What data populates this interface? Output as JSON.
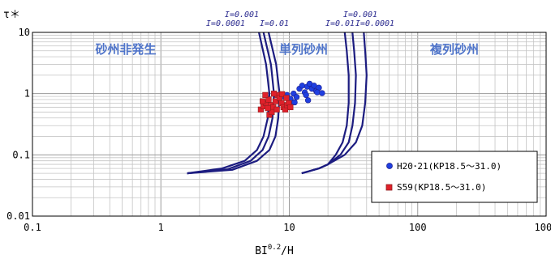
{
  "chart_data": {
    "type": "scatter",
    "xscale": "log",
    "yscale": "log",
    "xlim": [
      0.1,
      1000
    ],
    "ylim": [
      0.01,
      10
    ],
    "xticks": [
      "0.1",
      "1",
      "10",
      "100",
      "1000"
    ],
    "yticks": [
      "0.01",
      "0.1",
      "1",
      "10"
    ],
    "ylabel": "τ＊",
    "xlabel_base": "BI",
    "xlabel_exp": "0.2",
    "xlabel_tail": "/H",
    "grid": true,
    "regions": [
      "砂州非発生",
      "単列砂州",
      "複列砂州"
    ],
    "curve_labels_left": [
      "I=0.001",
      "I=0.0001",
      "I=0.01"
    ],
    "curve_labels_right": [
      "I=0.001",
      "I=0.01",
      "I=0.0001"
    ],
    "curve_color": "#1c1c80",
    "boundary_curves": [
      {
        "group": "left",
        "points": [
          [
            1.6,
            0.05
          ],
          [
            3.0,
            0.06
          ],
          [
            4.5,
            0.08
          ],
          [
            5.6,
            0.12
          ],
          [
            6.3,
            0.2
          ],
          [
            6.8,
            0.4
          ],
          [
            7.0,
            1.0
          ],
          [
            6.6,
            3.0
          ],
          [
            5.8,
            10
          ]
        ]
      },
      {
        "group": "left",
        "points": [
          [
            1.6,
            0.05
          ],
          [
            3.3,
            0.058
          ],
          [
            5.0,
            0.08
          ],
          [
            6.2,
            0.12
          ],
          [
            6.9,
            0.2
          ],
          [
            7.4,
            0.4
          ],
          [
            7.6,
            1.0
          ],
          [
            7.2,
            3.0
          ],
          [
            6.3,
            10
          ]
        ]
      },
      {
        "group": "left",
        "points": [
          [
            1.6,
            0.05
          ],
          [
            3.6,
            0.057
          ],
          [
            5.6,
            0.08
          ],
          [
            7.0,
            0.12
          ],
          [
            7.8,
            0.2
          ],
          [
            8.2,
            0.4
          ],
          [
            8.4,
            1.0
          ],
          [
            7.9,
            3.0
          ],
          [
            6.9,
            10
          ]
        ]
      },
      {
        "group": "right",
        "points": [
          [
            12.5,
            0.05
          ],
          [
            17,
            0.06
          ],
          [
            20,
            0.07
          ],
          [
            23,
            0.1
          ],
          [
            26,
            0.16
          ],
          [
            28,
            0.3
          ],
          [
            29,
            0.7
          ],
          [
            29,
            2
          ],
          [
            28,
            5
          ],
          [
            27,
            10
          ]
        ]
      },
      {
        "group": "right",
        "points": [
          [
            12.5,
            0.05
          ],
          [
            17,
            0.06
          ],
          [
            20,
            0.07
          ],
          [
            25,
            0.1
          ],
          [
            29,
            0.16
          ],
          [
            31,
            0.3
          ],
          [
            32.5,
            0.7
          ],
          [
            33,
            2
          ],
          [
            32,
            5
          ],
          [
            31,
            10
          ]
        ]
      },
      {
        "group": "right",
        "points": [
          [
            12.5,
            0.05
          ],
          [
            17,
            0.06
          ],
          [
            20,
            0.07
          ],
          [
            27,
            0.1
          ],
          [
            33,
            0.16
          ],
          [
            37,
            0.3
          ],
          [
            39,
            0.7
          ],
          [
            40,
            2
          ],
          [
            39,
            5
          ],
          [
            38,
            10
          ]
        ]
      }
    ],
    "series": [
      {
        "name": "H20･21(KP18.5～31.0)",
        "marker": "circle",
        "color": "#1f3fe0",
        "points": [
          [
            9,
            0.9
          ],
          [
            9.6,
            0.95
          ],
          [
            10.2,
            0.82
          ],
          [
            10.8,
            1.0
          ],
          [
            11.4,
            0.88
          ],
          [
            12.0,
            1.2
          ],
          [
            12.6,
            1.35
          ],
          [
            13.2,
            1.05
          ],
          [
            13.8,
            1.3
          ],
          [
            14.4,
            1.45
          ],
          [
            15.0,
            1.2
          ],
          [
            15.6,
            1.35
          ],
          [
            16.2,
            1.1
          ],
          [
            17.0,
            1.25
          ],
          [
            14.0,
            0.78
          ],
          [
            13.5,
            0.95
          ],
          [
            10.0,
            0.7
          ],
          [
            11.0,
            0.72
          ],
          [
            16.5,
            1.05
          ],
          [
            18.0,
            1.02
          ]
        ]
      },
      {
        "name": "S59(KP18.5～31.0)",
        "marker": "square",
        "color": "#e0202a",
        "points": [
          [
            6.0,
            0.55
          ],
          [
            6.3,
            0.62
          ],
          [
            6.6,
            0.7
          ],
          [
            6.9,
            0.8
          ],
          [
            7.2,
            0.65
          ],
          [
            7.5,
            0.6
          ],
          [
            7.8,
            0.75
          ],
          [
            8.1,
            0.95
          ],
          [
            8.4,
            0.85
          ],
          [
            8.7,
            0.7
          ],
          [
            9.0,
            0.6
          ],
          [
            9.3,
            0.55
          ],
          [
            9.6,
            0.65
          ],
          [
            9.9,
            0.7
          ],
          [
            7.0,
            0.45
          ],
          [
            6.5,
            0.95
          ],
          [
            7.6,
            1.0
          ],
          [
            8.8,
            0.98
          ],
          [
            6.2,
            0.75
          ],
          [
            7.3,
            0.5
          ],
          [
            8.0,
            0.55
          ],
          [
            9.5,
            0.85
          ],
          [
            10.2,
            0.6
          ],
          [
            6.8,
            0.58
          ]
        ]
      }
    ],
    "legend_position": "bottom-right"
  }
}
